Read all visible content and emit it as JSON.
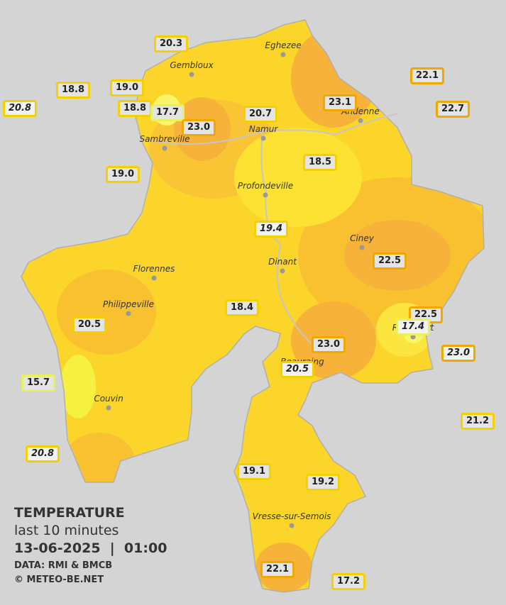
{
  "legend": {
    "title": "TEMPERATURE",
    "period": "last 10 minutes",
    "datetime": "13-06-2025  |  01:00",
    "source": "DATA: RMI & BMCB",
    "copyright": "© METEO-BE.NET"
  },
  "towns": [
    "Eghezee",
    "Gembloux",
    "Andenne",
    "Namur",
    "Sambreville",
    "Profondeville",
    "Ciney",
    "Dinant",
    "Florennes",
    "Philippeville",
    "Rochefort",
    "Beauraing",
    "Couvin",
    "Vresse-sur-Semois"
  ],
  "stations": [
    "20.3",
    "18.8",
    "19.0",
    "20.8",
    "18.8",
    "17.7",
    "23.0",
    "20.7",
    "23.1",
    "22.1",
    "22.7",
    "19.0",
    "18.5",
    "19.4",
    "22.5",
    "18.4",
    "20.5",
    "22.5",
    "17.4",
    "23.0",
    "23.0",
    "20.5",
    "15.7",
    "21.2",
    "20.8",
    "19.1",
    "19.2",
    "22.1",
    "17.2"
  ]
}
